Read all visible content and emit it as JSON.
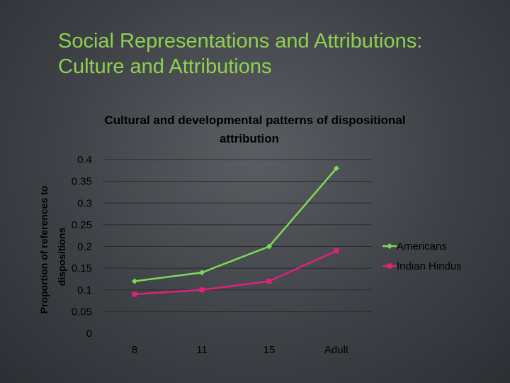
{
  "slide": {
    "title_line1": "Social Representations and Attributions:",
    "title_line2": "Culture and Attributions"
  },
  "colors": {
    "title": "#8fd14f",
    "Americans": "#7ed957",
    "Indian Hindus": "#e0207c",
    "gridline": "#2a2a2a"
  },
  "chart_data": {
    "type": "line",
    "title_line1": "Cultural and developmental patterns of dispositional",
    "title_line2": "attribution",
    "categories": [
      "8",
      "11",
      "15",
      "Adult"
    ],
    "series": [
      {
        "name": "Americans",
        "marker": "diamond",
        "values": [
          0.12,
          0.14,
          0.2,
          0.38
        ]
      },
      {
        "name": "Indian Hindus",
        "marker": "square",
        "values": [
          0.09,
          0.1,
          0.12,
          0.19
        ]
      }
    ],
    "ylabel_line1": "Proportion of references to",
    "ylabel_line2": "dispositions",
    "xlabel": "",
    "ylim": [
      0,
      0.4
    ],
    "y_ticks": [
      "0",
      "0.05",
      "0.1",
      "0.15",
      "0.2",
      "0.25",
      "0.3",
      "0.35",
      "0.4"
    ],
    "grid": true,
    "legend": "right"
  }
}
